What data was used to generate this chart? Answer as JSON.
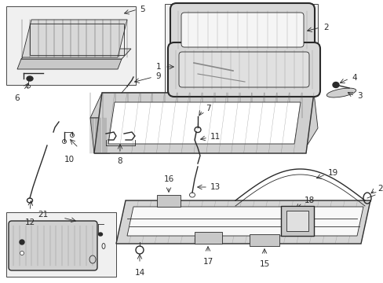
{
  "bg_color": "#ffffff",
  "lc": "#2a2a2a",
  "figsize": [
    4.89,
    3.6
  ],
  "dpi": 100,
  "xlim": [
    0,
    489
  ],
  "ylim": [
    0,
    360
  ]
}
